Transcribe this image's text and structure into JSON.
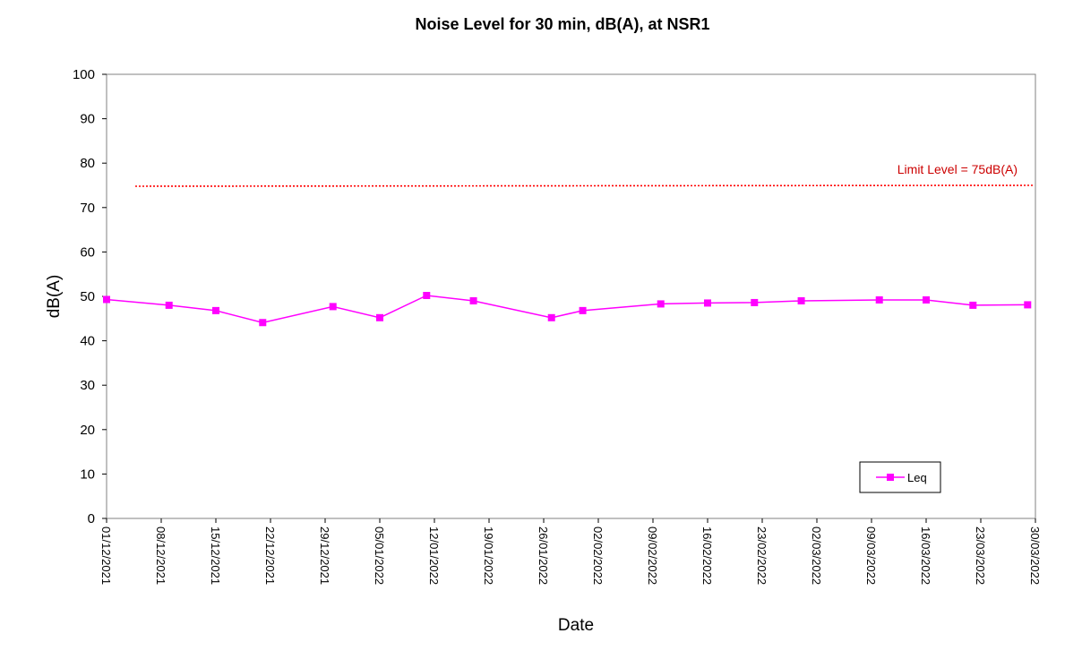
{
  "chart_data": {
    "type": "line",
    "title": "Noise Level for 30 min, dB(A), at NSR1",
    "xlabel": "Date",
    "ylabel": "dB(A)",
    "ylim": [
      0,
      100
    ],
    "y_ticks": [
      0,
      10,
      20,
      30,
      40,
      50,
      60,
      70,
      80,
      90,
      100
    ],
    "x_range": [
      "2021-12-01",
      "2022-03-30"
    ],
    "x_ticks": [
      {
        "date": "2021-12-01",
        "label": "01/12/2021"
      },
      {
        "date": "2021-12-08",
        "label": "08/12/2021"
      },
      {
        "date": "2021-12-15",
        "label": "15/12/2021"
      },
      {
        "date": "2021-12-22",
        "label": "22/12/2021"
      },
      {
        "date": "2021-12-29",
        "label": "29/12/2021"
      },
      {
        "date": "2022-01-05",
        "label": "05/01/2022"
      },
      {
        "date": "2022-01-12",
        "label": "12/01/2022"
      },
      {
        "date": "2022-01-19",
        "label": "19/01/2022"
      },
      {
        "date": "2022-01-26",
        "label": "26/01/2022"
      },
      {
        "date": "2022-02-02",
        "label": "02/02/2022"
      },
      {
        "date": "2022-02-09",
        "label": "09/02/2022"
      },
      {
        "date": "2022-02-16",
        "label": "16/02/2022"
      },
      {
        "date": "2022-02-23",
        "label": "23/02/2022"
      },
      {
        "date": "2022-03-02",
        "label": "02/03/2022"
      },
      {
        "date": "2022-03-09",
        "label": "09/03/2022"
      },
      {
        "date": "2022-03-16",
        "label": "16/03/2022"
      },
      {
        "date": "2022-03-23",
        "label": "23/03/2022"
      },
      {
        "date": "2022-03-30",
        "label": "30/03/2022"
      }
    ],
    "series": [
      {
        "name": "Leq",
        "color": "#ff00ff",
        "marker": "square",
        "points": [
          {
            "x": "2021-12-01",
            "y": 49.3
          },
          {
            "x": "2021-12-09",
            "y": 48.0
          },
          {
            "x": "2021-12-15",
            "y": 46.8
          },
          {
            "x": "2021-12-21",
            "y": 44.1
          },
          {
            "x": "2021-12-30",
            "y": 47.7
          },
          {
            "x": "2022-01-05",
            "y": 45.2
          },
          {
            "x": "2022-01-11",
            "y": 50.2
          },
          {
            "x": "2022-01-17",
            "y": 49.0
          },
          {
            "x": "2022-01-27",
            "y": 45.2
          },
          {
            "x": "2022-01-31",
            "y": 46.8
          },
          {
            "x": "2022-02-10",
            "y": 48.3
          },
          {
            "x": "2022-02-16",
            "y": 48.5
          },
          {
            "x": "2022-02-22",
            "y": 48.6
          },
          {
            "x": "2022-02-28",
            "y": 49.0
          },
          {
            "x": "2022-03-10",
            "y": 49.2
          },
          {
            "x": "2022-03-16",
            "y": 49.2
          },
          {
            "x": "2022-03-22",
            "y": 48.0
          },
          {
            "x": "2022-03-29",
            "y": 48.1
          }
        ]
      }
    ],
    "limit": {
      "value": 75,
      "label": "Limit Level = 75dB(A)",
      "color": "#ff0000"
    },
    "legend": {
      "position": "bottom-right",
      "entries": [
        "Leq"
      ]
    },
    "grid": false
  }
}
